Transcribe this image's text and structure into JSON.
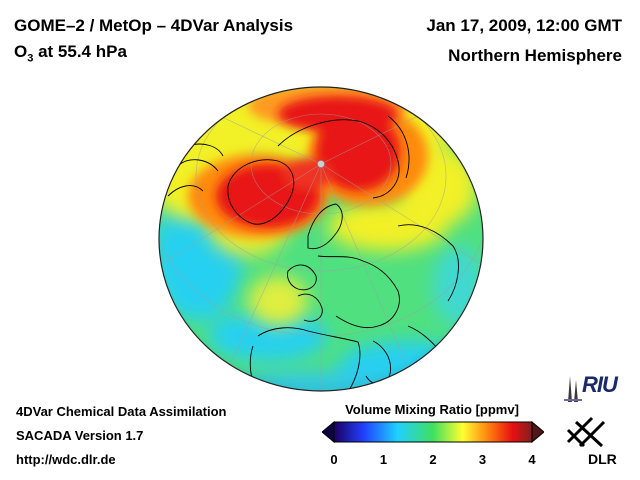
{
  "header": {
    "title_left": "GOME–2 / MetOp – 4DVar Analysis",
    "subtitle_left_main": "O",
    "subtitle_left_sub": "3",
    "subtitle_left_rest": " at 55.4 hPa",
    "date": "Jan 17, 2009, 12:00 GMT",
    "region": "Northern Hemisphere"
  },
  "footer": {
    "line1": "4DVar Chemical Data Assimilation",
    "line2": "SACADA Version 1.7",
    "line3": "http://wdc.dlr.de"
  },
  "colorbar": {
    "title": "Volume Mixing Ratio [ppmv]",
    "ticks": [
      "0",
      "1",
      "2",
      "3",
      "4"
    ],
    "range": [
      0,
      4
    ],
    "colors": [
      "#1c0060",
      "#2040ff",
      "#20d0ff",
      "#40e060",
      "#ffff30",
      "#ff8010",
      "#e81010",
      "#802020"
    ]
  },
  "logos": {
    "riu_text": "RIU",
    "dlr_text": "DLR"
  },
  "map": {
    "palette": {
      "ocean_base": "#50e080",
      "high": "#e81818",
      "mid": "#ff8a10",
      "yellow": "#f2f028",
      "low": "#28d0f0",
      "coast": "#000000",
      "pole_marker": "#d0d0d0"
    }
  }
}
